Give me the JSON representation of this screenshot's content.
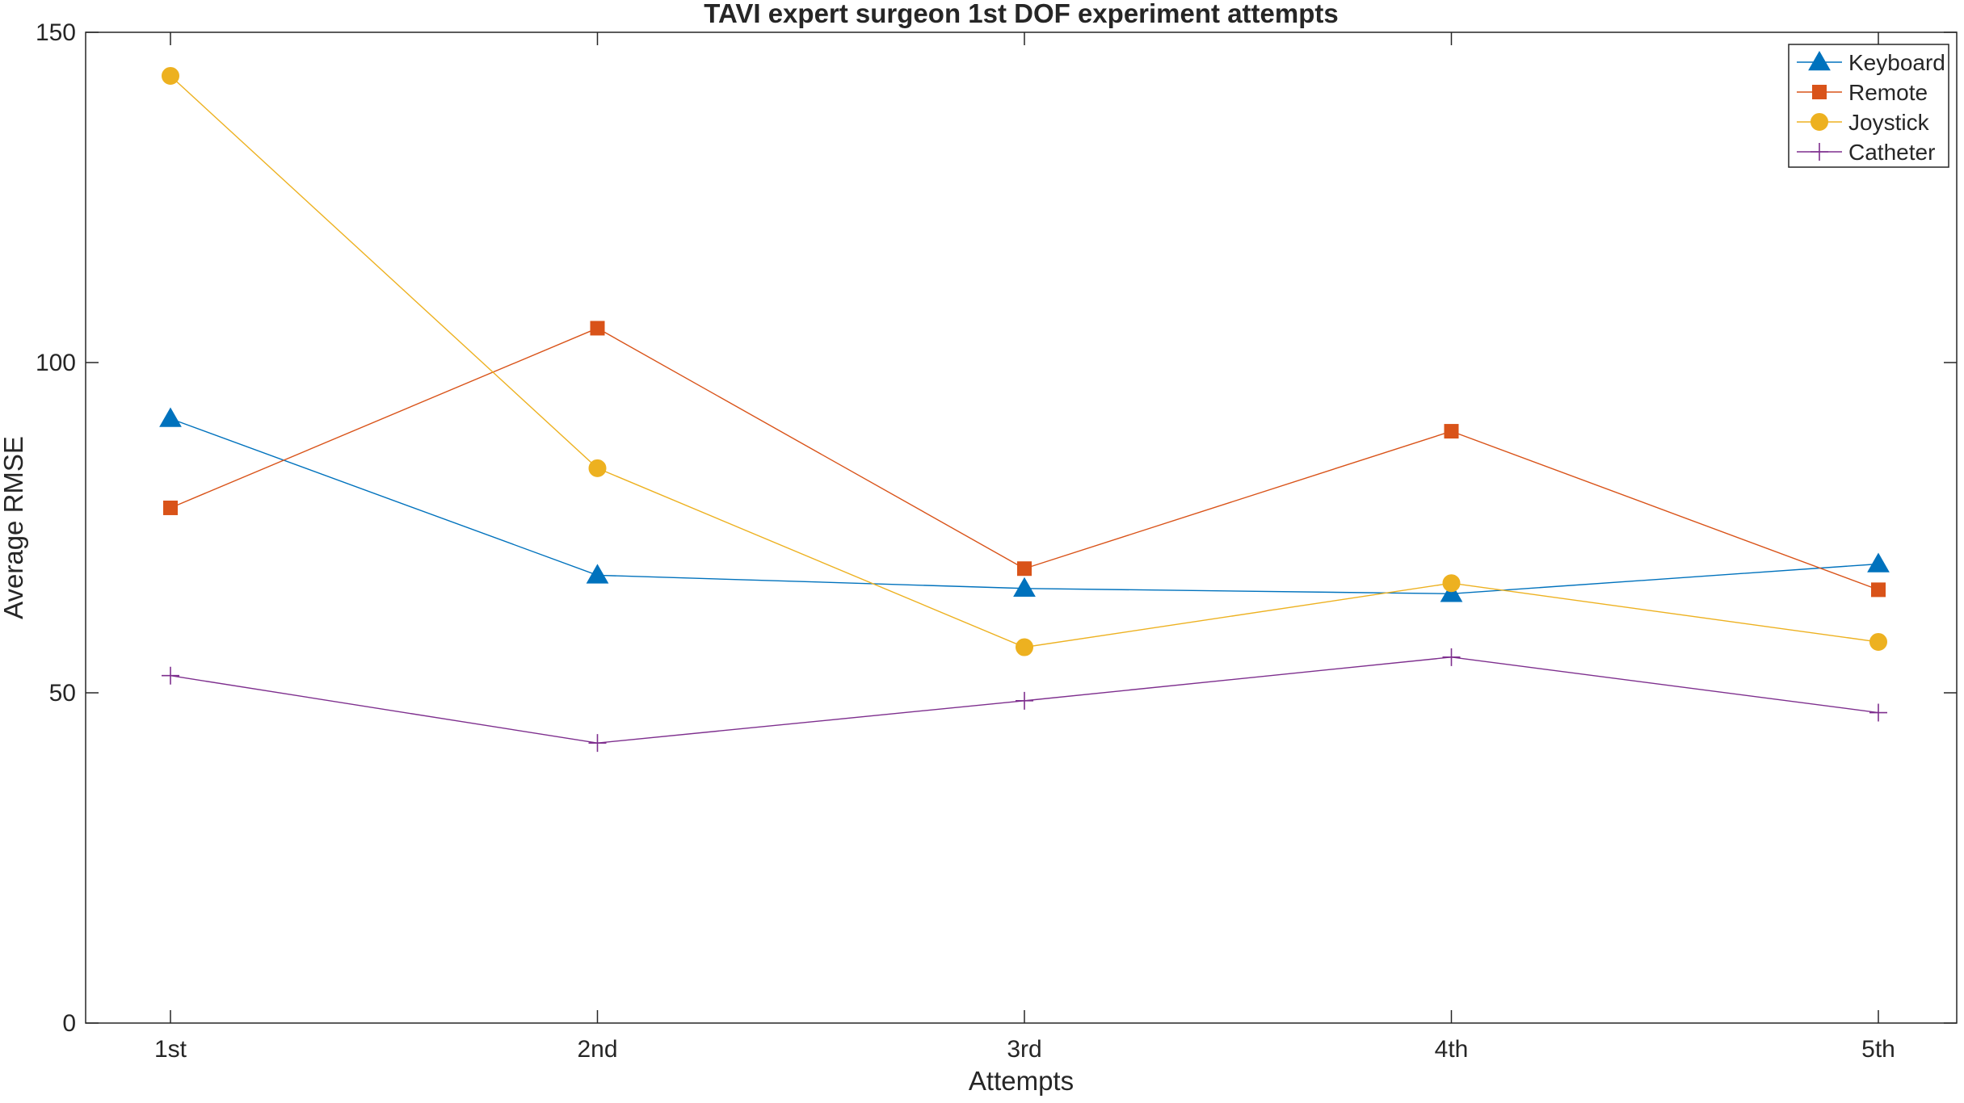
{
  "chart_data": {
    "type": "line",
    "title": "TAVI expert surgeon 1st DOF experiment attempts",
    "xlabel": "Attempts",
    "ylabel": "Average RMSE",
    "categories": [
      "1st",
      "2nd",
      "3rd",
      "4th",
      "5th"
    ],
    "ylim": [
      0,
      150
    ],
    "yticks": [
      0,
      50,
      100,
      150
    ],
    "grid": false,
    "legend_position": "top-right",
    "series": [
      {
        "name": "Keyboard",
        "values": [
          91.5,
          67.8,
          65.8,
          65.0,
          69.5
        ],
        "color": "#0072BD",
        "marker": "triangle"
      },
      {
        "name": "Remote",
        "values": [
          78.0,
          105.2,
          68.8,
          89.6,
          65.6
        ],
        "color": "#D95319",
        "marker": "square"
      },
      {
        "name": "Joystick",
        "values": [
          143.4,
          84.0,
          56.9,
          66.6,
          57.7
        ],
        "color": "#EDB120",
        "marker": "circle"
      },
      {
        "name": "Catheter",
        "values": [
          52.6,
          42.4,
          48.8,
          55.4,
          47.0
        ],
        "color": "#7E2F8E",
        "marker": "plus"
      }
    ]
  }
}
